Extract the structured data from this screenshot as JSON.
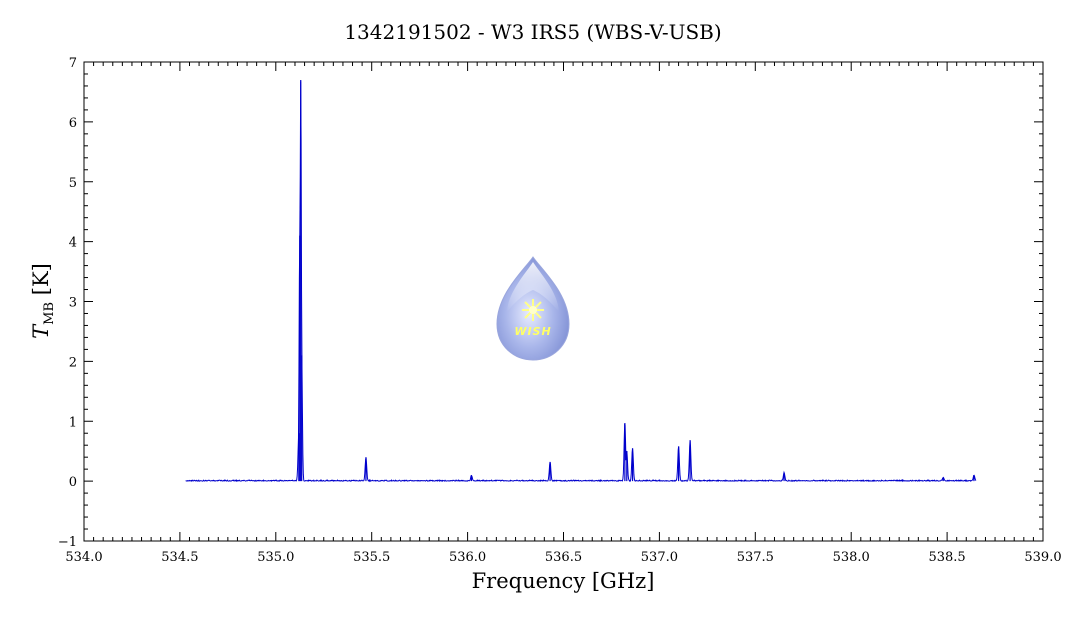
{
  "chart_data": {
    "type": "line",
    "title": "1342191502 - W3 IRS5 (WBS-V-USB)",
    "xlabel": "Frequency [GHz]",
    "ylabel_main": "T",
    "ylabel_sub": "MB",
    "ylabel_unit": "[K]",
    "xlim": [
      534.0,
      539.0
    ],
    "ylim": [
      -1,
      7
    ],
    "x_ticks": [
      534.0,
      534.5,
      535.0,
      535.5,
      536.0,
      536.5,
      537.0,
      537.5,
      538.0,
      538.5,
      539.0
    ],
    "x_tick_labels": [
      "534.0",
      "534.5",
      "535.0",
      "535.5",
      "536.0",
      "536.5",
      "537.0",
      "537.5",
      "538.0",
      "538.5",
      "539.0"
    ],
    "y_ticks": [
      -1,
      0,
      1,
      2,
      3,
      4,
      5,
      6,
      7
    ],
    "y_tick_labels": [
      "−1",
      "0",
      "1",
      "2",
      "3",
      "4",
      "5",
      "6",
      "7"
    ],
    "grid": false,
    "line_color": "#0000cc",
    "series": [
      {
        "x_range": [
          534.53,
          538.65
        ],
        "baseline": 0.0,
        "peaks": [
          {
            "x": 535.125,
            "y": 4.1
          },
          {
            "x": 535.13,
            "y": 6.7
          },
          {
            "x": 535.135,
            "y": 2.1
          },
          {
            "x": 535.12,
            "y": 0.8
          },
          {
            "x": 535.47,
            "y": 0.4
          },
          {
            "x": 536.02,
            "y": 0.1
          },
          {
            "x": 536.43,
            "y": 0.32
          },
          {
            "x": 536.82,
            "y": 0.97
          },
          {
            "x": 536.83,
            "y": 0.5
          },
          {
            "x": 536.86,
            "y": 0.55
          },
          {
            "x": 537.1,
            "y": 0.58
          },
          {
            "x": 537.16,
            "y": 0.68
          },
          {
            "x": 537.65,
            "y": 0.14
          },
          {
            "x": 538.48,
            "y": 0.06
          },
          {
            "x": 538.64,
            "y": 0.1
          }
        ]
      }
    ],
    "logo_text": "WISH",
    "logo_color": "#8899dd"
  }
}
